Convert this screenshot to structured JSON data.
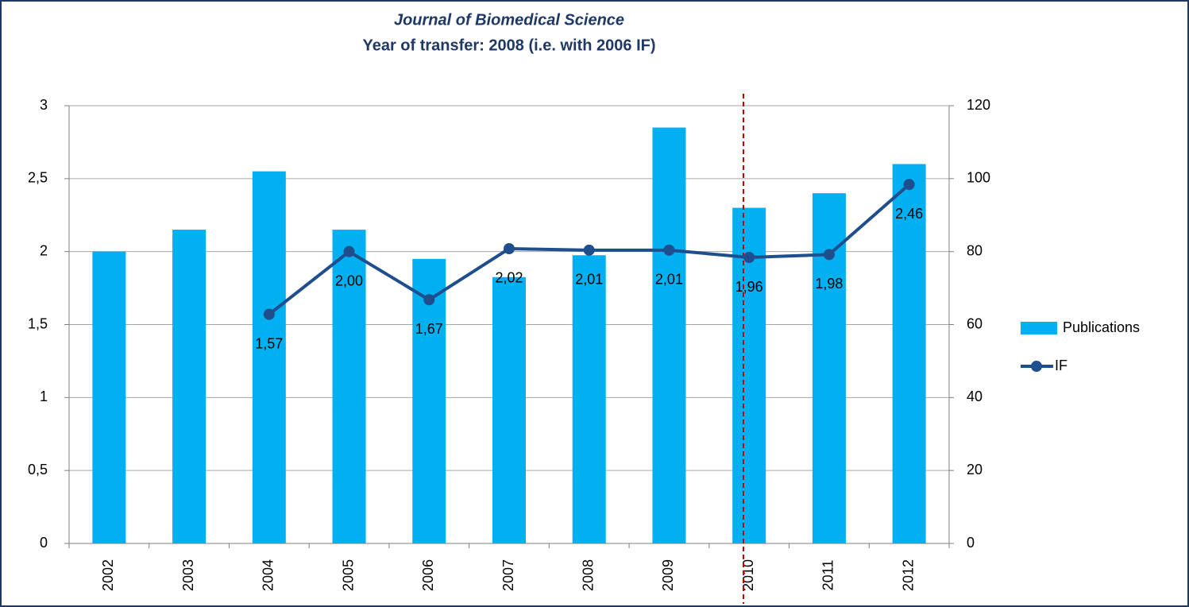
{
  "chart_data": {
    "type": "bar_line",
    "title": "Journal of Biomedical Science",
    "subtitle": "Year of transfer: 2008  (i.e. with 2006 IF)",
    "categories": [
      "2002",
      "2003",
      "2004",
      "2005",
      "2006",
      "2007",
      "2008",
      "2009",
      "2010",
      "2011",
      "2012"
    ],
    "series": [
      {
        "name": "Publications",
        "type": "bar",
        "axis": "y2",
        "color": "#00b0f0",
        "values": [
          80,
          86,
          102,
          86,
          78,
          73,
          79,
          114,
          92,
          96,
          104
        ]
      },
      {
        "name": "IF",
        "type": "line",
        "axis": "y",
        "color": "#1f4e8c",
        "values": [
          null,
          null,
          1.57,
          2.0,
          1.67,
          2.02,
          2.01,
          2.01,
          1.96,
          1.98,
          2.46
        ],
        "value_labels": [
          null,
          null,
          "1,57",
          "2,00",
          "1,67",
          "2,02",
          "2,01",
          "2,01",
          "1,96",
          "1,98",
          "2,46"
        ]
      }
    ],
    "ylim": [
      0,
      3
    ],
    "yticks": [
      0,
      {
        "value": 0.5,
        "label": "0,5"
      },
      1,
      {
        "value": 1.5,
        "label": "1,5"
      },
      2,
      {
        "value": 2.5,
        "label": "2,5"
      },
      3
    ],
    "y2lim": [
      0,
      120
    ],
    "y2ticks": [
      0,
      20,
      40,
      60,
      80,
      100,
      120
    ],
    "grid": true,
    "legend": "right"
  }
}
